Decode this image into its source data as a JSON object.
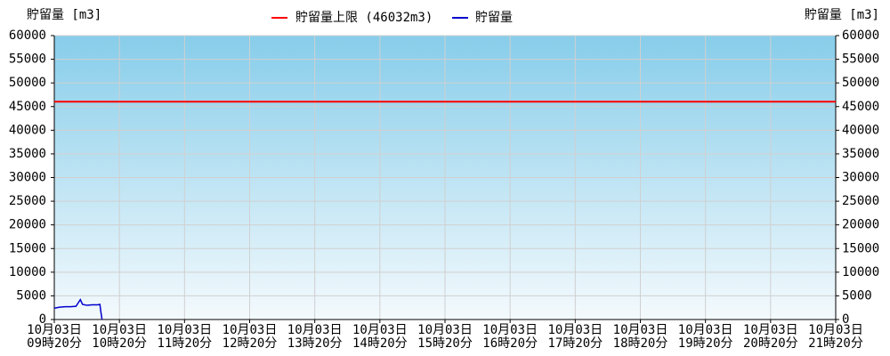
{
  "chart_data": {
    "type": "line",
    "y_label": "貯留量 [m3]",
    "y2_label": "貯留量 [m3]",
    "limit": {
      "name": "貯留量上限 (46032m3)",
      "value": 46032,
      "color": "#ff0000"
    },
    "x": [
      "10月03日09時20分",
      "10月03日09時25分",
      "10月03日09時30分",
      "10月03日09時35分",
      "10月03日09時40分",
      "10月03日09時42分",
      "10月03日09時44分",
      "10月03日09時46分",
      "10月03日09時50分",
      "10月03日09時55分",
      "10月03日10時00分",
      "10月03日10時02分",
      "10月03日10時03分",
      "10月03日10時04分"
    ],
    "series": [
      {
        "name": "貯留量",
        "color": "#0000cc",
        "values": [
          2400,
          2600,
          2700,
          2700,
          2800,
          3500,
          4200,
          3200,
          3000,
          3100,
          3100,
          3200,
          1500,
          0
        ]
      }
    ],
    "xlim": [
      "10月03日09時20分",
      "10月03日21時20分"
    ],
    "xticks": [
      [
        "10月03日",
        "09時20分"
      ],
      [
        "10月03日",
        "10時20分"
      ],
      [
        "10月03日",
        "11時20分"
      ],
      [
        "10月03日",
        "12時20分"
      ],
      [
        "10月03日",
        "13時20分"
      ],
      [
        "10月03日",
        "14時20分"
      ],
      [
        "10月03日",
        "15時20分"
      ],
      [
        "10月03日",
        "16時20分"
      ],
      [
        "10月03日",
        "17時20分"
      ],
      [
        "10月03日",
        "18時20分"
      ],
      [
        "10月03日",
        "19時20分"
      ],
      [
        "10月03日",
        "20時20分"
      ],
      [
        "10月03日",
        "21時20分"
      ]
    ],
    "ylim": [
      0,
      60000
    ],
    "yticks": [
      0,
      5000,
      10000,
      15000,
      20000,
      25000,
      30000,
      35000,
      40000,
      45000,
      50000,
      55000,
      60000
    ],
    "y2lim": [
      0,
      60000
    ],
    "y2ticks": [
      0,
      5000,
      10000,
      15000,
      20000,
      25000,
      30000,
      35000,
      40000,
      45000,
      50000,
      55000,
      60000
    ],
    "grid": true
  }
}
